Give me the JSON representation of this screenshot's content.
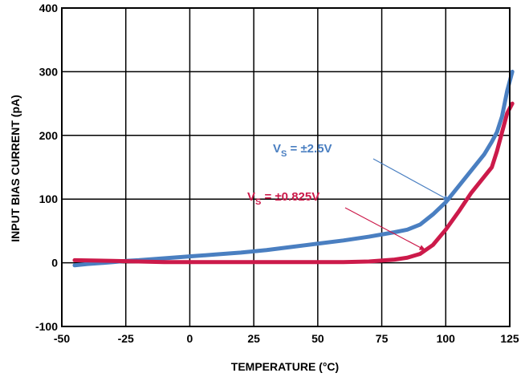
{
  "chart_data": {
    "type": "line",
    "title": "",
    "xlabel": "TEMPERATURE (°C)",
    "ylabel": "INPUT BIAS CURRENT (pA)",
    "xlim": [
      -50,
      125
    ],
    "ylim": [
      -100,
      400
    ],
    "x_ticks": [
      "-50",
      "-25",
      "0",
      "25",
      "50",
      "75",
      "100",
      "125"
    ],
    "y_ticks": [
      "400",
      "300",
      "200",
      "100",
      "0",
      "-100"
    ],
    "grid": true,
    "legend": "none",
    "series": [
      {
        "name": "VS = ±2.5V",
        "color": "#4a7fc1",
        "x": [
          -45,
          -40,
          -30,
          -25,
          -20,
          -10,
          0,
          10,
          20,
          30,
          40,
          50,
          60,
          70,
          80,
          85,
          90,
          95,
          100,
          105,
          110,
          115,
          118,
          120,
          122,
          124,
          126
        ],
        "y": [
          -4,
          -2,
          1,
          3,
          4,
          7,
          10,
          13,
          16,
          20,
          25,
          30,
          35,
          41,
          48,
          52,
          60,
          76,
          95,
          120,
          145,
          170,
          190,
          205,
          230,
          270,
          300
        ]
      },
      {
        "name": "VS = ±0.825V",
        "color": "#cc1a4a",
        "x": [
          -45,
          -30,
          -20,
          -10,
          0,
          20,
          40,
          60,
          70,
          80,
          85,
          90,
          95,
          100,
          105,
          110,
          115,
          118,
          120,
          122,
          124,
          126
        ],
        "y": [
          4,
          3,
          2,
          1,
          1,
          1,
          1,
          1,
          2,
          5,
          8,
          14,
          28,
          52,
          80,
          110,
          135,
          150,
          175,
          205,
          235,
          250
        ]
      }
    ],
    "annotations": [
      {
        "main": "V",
        "sub": "S",
        "rest": " = ±2.5V",
        "color": "#4a7fc1"
      },
      {
        "main": "V",
        "sub": "S",
        "rest": " = ±0.825V",
        "color": "#cc1a4a"
      }
    ]
  }
}
